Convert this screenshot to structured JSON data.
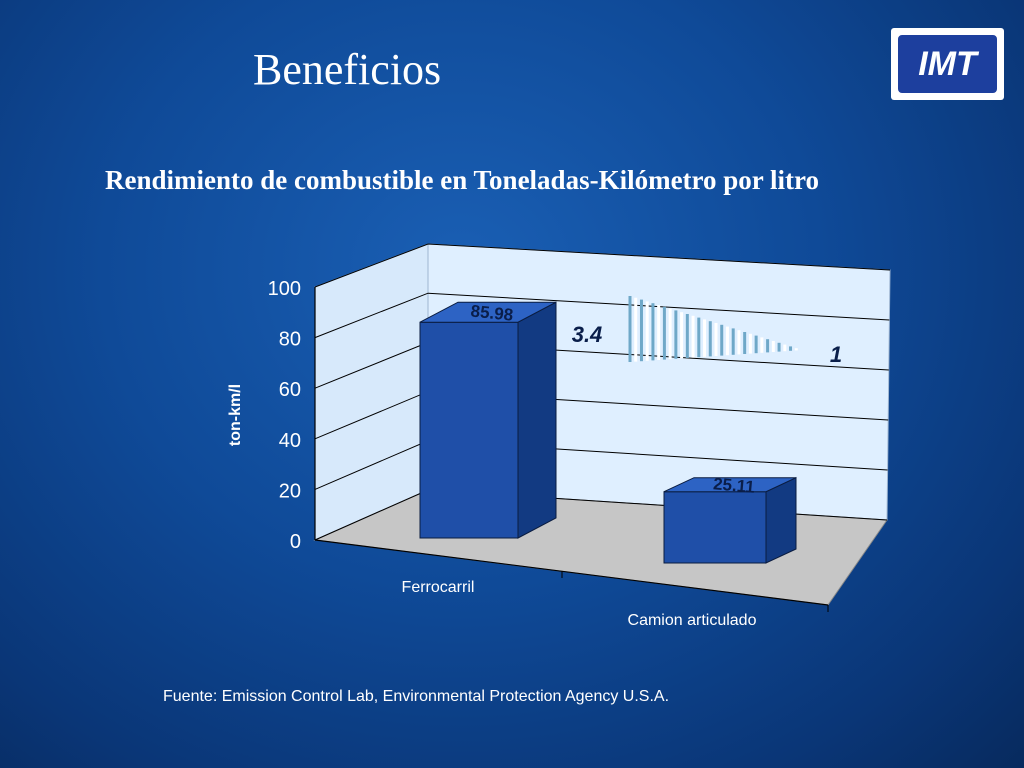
{
  "slide": {
    "title": "Beneficios",
    "subtitle": "Rendimiento de combustible en Toneladas-Kilómetro por litro",
    "source": "Fuente: Emission Control Lab, Environmental Protection Agency  U.S.A.",
    "logo_text": "IMT"
  },
  "chart_data": {
    "type": "bar",
    "categories": [
      "Ferrocarril",
      "Camion articulado"
    ],
    "values": [
      85.98,
      25.11
    ],
    "value_labels": [
      "85.98",
      "25.11"
    ],
    "ylabel": "ton-km/l",
    "ylim": [
      0,
      100
    ],
    "yticks": [
      0,
      20,
      40,
      60,
      80,
      100
    ],
    "ytick_labels": [
      "0",
      "20",
      "40",
      "60",
      "80",
      "100"
    ],
    "grid": true,
    "three_d": true,
    "annotations": [
      {
        "text": "3.4",
        "style": "italic bold"
      },
      {
        "text": "1",
        "style": "italic bold"
      }
    ]
  },
  "colors": {
    "bar": "#1f4fa8",
    "bar_top": "#2d63c4",
    "bar_side": "#123a82",
    "back_wall": "#dfefff",
    "floor": "#c6c6c6",
    "annotation": "#0a1e4a",
    "wedge": "#6fa8c8"
  }
}
